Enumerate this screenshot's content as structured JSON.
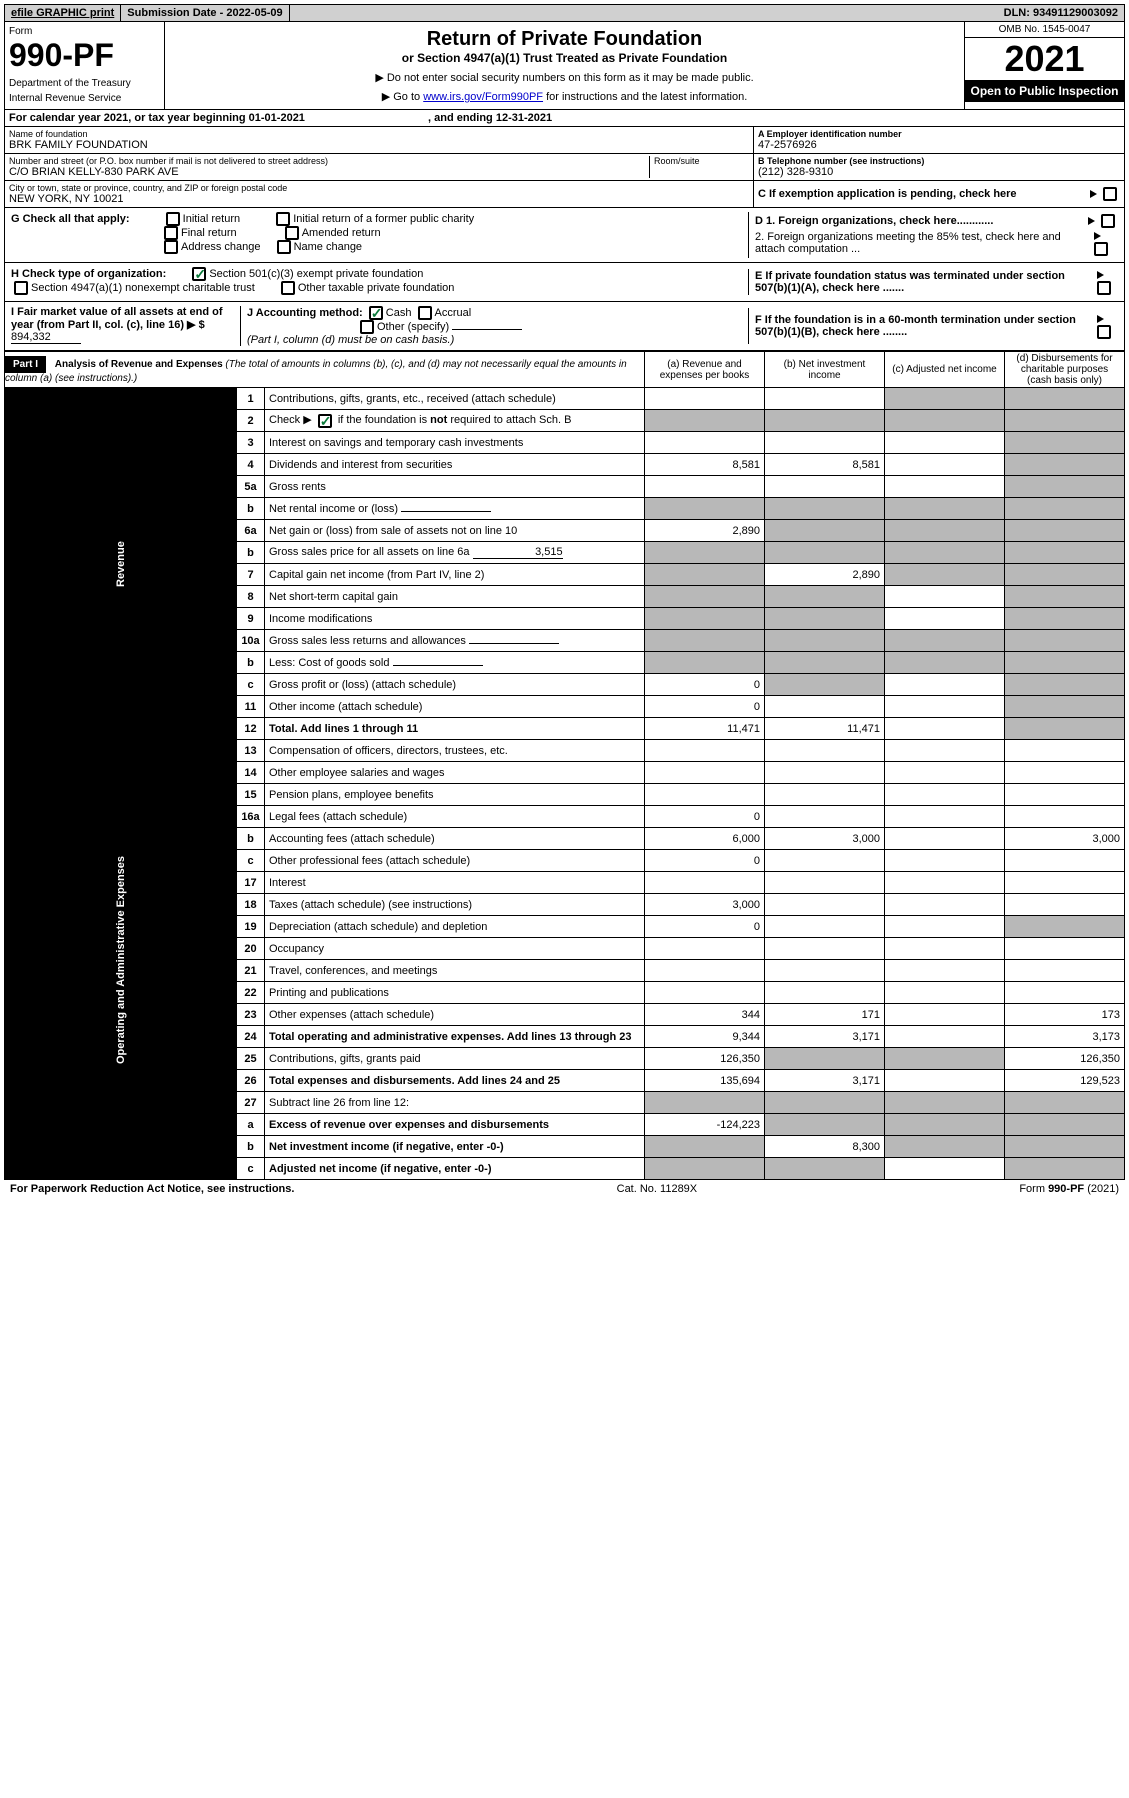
{
  "top_bar": {
    "efile": "efile GRAPHIC print",
    "sub_date_label": "Submission Date - ",
    "sub_date": "2022-05-09",
    "dln_label": "DLN: ",
    "dln": "93491129003092"
  },
  "header": {
    "form_label": "Form",
    "form_no": "990-PF",
    "dept": "Department of the Treasury",
    "irs": "Internal Revenue Service",
    "title": "Return of Private Foundation",
    "subtitle": "or Section 4947(a)(1) Trust Treated as Private Foundation",
    "instr1": "▶ Do not enter social security numbers on this form as it may be made public.",
    "instr2": "▶ Go to ",
    "instr2_link": "www.irs.gov/Form990PF",
    "instr2_tail": " for instructions and the latest information.",
    "omb": "OMB No. 1545-0047",
    "year": "2021",
    "open": "Open to Public Inspection"
  },
  "cal_year": {
    "prefix": "For calendar year 2021, or tax year beginning ",
    "begin": "01-01-2021",
    "mid": ", and ending ",
    "end": "12-31-2021"
  },
  "foundation": {
    "name_label": "Name of foundation",
    "name": "BRK FAMILY FOUNDATION",
    "ein_label": "A Employer identification number",
    "ein": "47-2576926",
    "addr_label": "Number and street (or P.O. box number if mail is not delivered to street address)",
    "addr": "C/O BRIAN KELLY-830 PARK AVE",
    "room_label": "Room/suite",
    "tel_label": "B Telephone number (see instructions)",
    "tel": "(212) 328-9310",
    "city_label": "City or town, state or province, country, and ZIP or foreign postal code",
    "city": "NEW YORK, NY  10021",
    "c_label": "C If exemption application is pending, check here"
  },
  "section_g": {
    "label": "G Check all that apply:",
    "opts": [
      "Initial return",
      "Final return",
      "Address change",
      "Initial return of a former public charity",
      "Amended return",
      "Name change"
    ]
  },
  "section_d": {
    "d1": "D 1. Foreign organizations, check here............",
    "d2": "2. Foreign organizations meeting the 85% test, check here and attach computation ..."
  },
  "section_h": {
    "label": "H Check type of organization:",
    "opt1": "Section 501(c)(3) exempt private foundation",
    "opt2": "Section 4947(a)(1) nonexempt charitable trust",
    "opt3": "Other taxable private foundation"
  },
  "section_e": "E If private foundation status was terminated under section 507(b)(1)(A), check here .......",
  "section_i": {
    "label": "I Fair market value of all assets at end of year (from Part II, col. (c), line 16) ▶ $",
    "value": "894,332"
  },
  "section_j": {
    "label": "J Accounting method:",
    "cash": "Cash",
    "accrual": "Accrual",
    "other": "Other (specify)",
    "note": "(Part I, column (d) must be on cash basis.)"
  },
  "section_f": "F If the foundation is in a 60-month termination under section 507(b)(1)(B), check here ........",
  "part1": {
    "tag": "Part I",
    "title": "Analysis of Revenue and Expenses",
    "sub": "(The total of amounts in columns (b), (c), and (d) may not necessarily equal the amounts in column (a) (see instructions).)",
    "cols": {
      "a": "(a) Revenue and expenses per books",
      "b": "(b) Net investment income",
      "c": "(c) Adjusted net income",
      "d": "(d) Disbursements for charitable purposes (cash basis only)"
    }
  },
  "side_labels": {
    "revenue": "Revenue",
    "expenses": "Operating and Administrative Expenses"
  },
  "lines": [
    {
      "no": "1",
      "desc": "Contributions, gifts, grants, etc., received (attach schedule)",
      "a": "",
      "b": "",
      "c": "shaded",
      "d": "shaded"
    },
    {
      "no": "2",
      "desc": "Check ▶ ☑ if the foundation is not required to attach Sch. B",
      "a": "shaded",
      "b": "shaded",
      "c": "shaded",
      "d": "shaded",
      "bold_not": true
    },
    {
      "no": "3",
      "desc": "Interest on savings and temporary cash investments",
      "a": "",
      "b": "",
      "c": "",
      "d": "shaded"
    },
    {
      "no": "4",
      "desc": "Dividends and interest from securities",
      "a": "8,581",
      "b": "8,581",
      "c": "",
      "d": "shaded"
    },
    {
      "no": "5a",
      "desc": "Gross rents",
      "a": "",
      "b": "",
      "c": "",
      "d": "shaded"
    },
    {
      "no": "b",
      "desc": "Net rental income or (loss)",
      "a": "shaded",
      "b": "shaded",
      "c": "shaded",
      "d": "shaded",
      "inline": true
    },
    {
      "no": "6a",
      "desc": "Net gain or (loss) from sale of assets not on line 10",
      "a": "2,890",
      "b": "shaded",
      "c": "shaded",
      "d": "shaded"
    },
    {
      "no": "b",
      "desc": "Gross sales price for all assets on line 6a",
      "inline_val": "3,515",
      "a": "shaded",
      "b": "shaded",
      "c": "shaded",
      "d": "shaded"
    },
    {
      "no": "7",
      "desc": "Capital gain net income (from Part IV, line 2)",
      "a": "shaded",
      "b": "2,890",
      "c": "shaded",
      "d": "shaded"
    },
    {
      "no": "8",
      "desc": "Net short-term capital gain",
      "a": "shaded",
      "b": "shaded",
      "c": "",
      "d": "shaded"
    },
    {
      "no": "9",
      "desc": "Income modifications",
      "a": "shaded",
      "b": "shaded",
      "c": "",
      "d": "shaded"
    },
    {
      "no": "10a",
      "desc": "Gross sales less returns and allowances",
      "a": "shaded",
      "b": "shaded",
      "c": "shaded",
      "d": "shaded",
      "inline": true
    },
    {
      "no": "b",
      "desc": "Less: Cost of goods sold",
      "a": "shaded",
      "b": "shaded",
      "c": "shaded",
      "d": "shaded",
      "inline": true
    },
    {
      "no": "c",
      "desc": "Gross profit or (loss) (attach schedule)",
      "a": "0",
      "b": "shaded",
      "c": "",
      "d": "shaded"
    },
    {
      "no": "11",
      "desc": "Other income (attach schedule)",
      "a": "0",
      "b": "",
      "c": "",
      "d": "shaded"
    },
    {
      "no": "12",
      "desc": "Total. Add lines 1 through 11",
      "a": "11,471",
      "b": "11,471",
      "c": "",
      "d": "shaded",
      "bold": true
    },
    {
      "no": "13",
      "desc": "Compensation of officers, directors, trustees, etc.",
      "a": "",
      "b": "",
      "c": "",
      "d": ""
    },
    {
      "no": "14",
      "desc": "Other employee salaries and wages",
      "a": "",
      "b": "",
      "c": "",
      "d": ""
    },
    {
      "no": "15",
      "desc": "Pension plans, employee benefits",
      "a": "",
      "b": "",
      "c": "",
      "d": ""
    },
    {
      "no": "16a",
      "desc": "Legal fees (attach schedule)",
      "a": "0",
      "b": "",
      "c": "",
      "d": ""
    },
    {
      "no": "b",
      "desc": "Accounting fees (attach schedule)",
      "a": "6,000",
      "b": "3,000",
      "c": "",
      "d": "3,000"
    },
    {
      "no": "c",
      "desc": "Other professional fees (attach schedule)",
      "a": "0",
      "b": "",
      "c": "",
      "d": ""
    },
    {
      "no": "17",
      "desc": "Interest",
      "a": "",
      "b": "",
      "c": "",
      "d": ""
    },
    {
      "no": "18",
      "desc": "Taxes (attach schedule) (see instructions)",
      "a": "3,000",
      "b": "",
      "c": "",
      "d": ""
    },
    {
      "no": "19",
      "desc": "Depreciation (attach schedule) and depletion",
      "a": "0",
      "b": "",
      "c": "",
      "d": "shaded"
    },
    {
      "no": "20",
      "desc": "Occupancy",
      "a": "",
      "b": "",
      "c": "",
      "d": ""
    },
    {
      "no": "21",
      "desc": "Travel, conferences, and meetings",
      "a": "",
      "b": "",
      "c": "",
      "d": ""
    },
    {
      "no": "22",
      "desc": "Printing and publications",
      "a": "",
      "b": "",
      "c": "",
      "d": ""
    },
    {
      "no": "23",
      "desc": "Other expenses (attach schedule)",
      "a": "344",
      "b": "171",
      "c": "",
      "d": "173"
    },
    {
      "no": "24",
      "desc": "Total operating and administrative expenses. Add lines 13 through 23",
      "a": "9,344",
      "b": "3,171",
      "c": "",
      "d": "3,173",
      "bold": true
    },
    {
      "no": "25",
      "desc": "Contributions, gifts, grants paid",
      "a": "126,350",
      "b": "shaded",
      "c": "shaded",
      "d": "126,350"
    },
    {
      "no": "26",
      "desc": "Total expenses and disbursements. Add lines 24 and 25",
      "a": "135,694",
      "b": "3,171",
      "c": "",
      "d": "129,523",
      "bold": true
    },
    {
      "no": "27",
      "desc": "Subtract line 26 from line 12:",
      "a": "shaded",
      "b": "shaded",
      "c": "shaded",
      "d": "shaded"
    },
    {
      "no": "a",
      "desc": "Excess of revenue over expenses and disbursements",
      "a": "-124,223",
      "b": "shaded",
      "c": "shaded",
      "d": "shaded",
      "bold": true
    },
    {
      "no": "b",
      "desc": "Net investment income (if negative, enter -0-)",
      "a": "shaded",
      "b": "8,300",
      "c": "shaded",
      "d": "shaded",
      "bold": true
    },
    {
      "no": "c",
      "desc": "Adjusted net income (if negative, enter -0-)",
      "a": "shaded",
      "b": "shaded",
      "c": "",
      "d": "shaded",
      "bold": true
    }
  ],
  "footer": {
    "left": "For Paperwork Reduction Act Notice, see instructions.",
    "mid": "Cat. No. 11289X",
    "right": "Form 990-PF (2021)"
  }
}
